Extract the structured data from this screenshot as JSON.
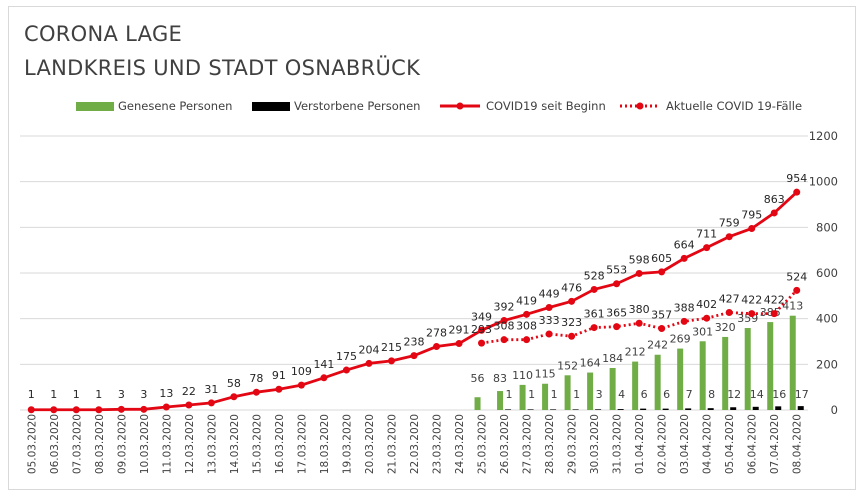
{
  "title_line1": "CORONA LAGE",
  "title_line2": "LANDKREIS UND STADT OSNABRÜCK",
  "colors": {
    "recovered": "#70ad47",
    "deaths": "#000000",
    "total": "#e30613",
    "active": "#e30613",
    "grid": "#d9d9d9",
    "text": "#404040"
  },
  "chart_data": {
    "type": "bar",
    "categories": [
      "05.03.2020",
      "06.03.2020",
      "07.03.2020",
      "08.03.2020",
      "09.03.2020",
      "10.03.2020",
      "11.03.2020",
      "12.03.2020",
      "13.03.2020",
      "14.03.2020",
      "15.03.2020",
      "16.03.2020",
      "17.03.2020",
      "18.03.2020",
      "19.03.2020",
      "20.03.2020",
      "21.03.2020",
      "22.03.2020",
      "23.03.2020",
      "24.03.2020",
      "25.03.2020",
      "26.03.2020",
      "27.03.2020",
      "28.03.2020",
      "29.03.2020",
      "30.03.2020",
      "31.03.2020",
      "01.04.2020",
      "02.04.2020",
      "03.04.2020",
      "04.04.2020",
      "05.04.2020",
      "06.04.2020",
      "07.04.2020",
      "08.04.2020"
    ],
    "ylim": [
      0,
      1200
    ],
    "yticks": [
      0,
      200,
      400,
      600,
      800,
      1000,
      1200
    ],
    "y_axis_position": "right",
    "grid": true,
    "legend_position": "top",
    "series": [
      {
        "name": "Genesene Personen",
        "kind": "bar",
        "color": "#70ad47",
        "values": [
          null,
          null,
          null,
          null,
          null,
          null,
          null,
          null,
          null,
          null,
          null,
          null,
          null,
          null,
          null,
          null,
          null,
          null,
          null,
          null,
          56,
          83,
          110,
          115,
          152,
          164,
          184,
          212,
          242,
          269,
          301,
          320,
          359,
          385,
          413
        ]
      },
      {
        "name": "Verstorbene Personen",
        "kind": "bar",
        "color": "#000000",
        "values": [
          null,
          null,
          null,
          null,
          null,
          null,
          null,
          null,
          null,
          null,
          null,
          null,
          null,
          null,
          null,
          null,
          null,
          null,
          null,
          null,
          null,
          1,
          1,
          1,
          1,
          3,
          4,
          6,
          6,
          7,
          8,
          12,
          14,
          16,
          17
        ]
      },
      {
        "name": "COVID19 seit Beginn",
        "kind": "line",
        "color": "#e30613",
        "values": [
          1,
          1,
          1,
          1,
          3,
          3,
          13,
          22,
          31,
          58,
          78,
          91,
          109,
          141,
          175,
          204,
          215,
          238,
          278,
          291,
          349,
          392,
          419,
          449,
          476,
          528,
          553,
          598,
          605,
          664,
          711,
          759,
          795,
          863,
          954
        ]
      },
      {
        "name": "Aktuelle COVID 19-Fälle",
        "kind": "dotted-line",
        "color": "#e30613",
        "values": [
          null,
          null,
          null,
          null,
          null,
          null,
          null,
          null,
          null,
          null,
          null,
          null,
          null,
          null,
          null,
          null,
          null,
          null,
          null,
          null,
          293,
          308,
          308,
          333,
          323,
          361,
          365,
          380,
          357,
          388,
          402,
          427,
          422,
          422,
          524
        ]
      }
    ]
  }
}
